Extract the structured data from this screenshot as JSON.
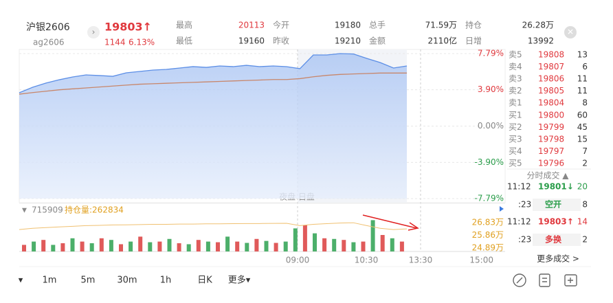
{
  "header": {
    "name": "沪银2606",
    "code": "ag2606",
    "price": "19803↑",
    "change": "1144",
    "change_pct": "6.13%",
    "stats": [
      [
        {
          "label": "最高",
          "value": "20113"
        },
        {
          "label": "今开",
          "value": "19180"
        },
        {
          "label": "总手",
          "value": "71.59万"
        },
        {
          "label": "持仓",
          "value": "26.28万"
        }
      ],
      [
        {
          "label": "最低",
          "value": "19160"
        },
        {
          "label": "昨收",
          "value": "19210"
        },
        {
          "label": "金额",
          "value": "2110亿"
        },
        {
          "label": "日增",
          "value": "13992"
        }
      ]
    ]
  },
  "chart_data": [
    {
      "type": "line",
      "ylim": [
        -7.79,
        7.79
      ],
      "yticks": [
        {
          "value": 7.79,
          "label": "7.79%"
        },
        {
          "value": 3.9,
          "label": "3.90%"
        },
        {
          "value": 0,
          "label": "0.00%"
        },
        {
          "value": -3.9,
          "label": "-3.90%"
        },
        {
          "value": -7.79,
          "label": "-7.79%"
        }
      ],
      "xticks": [
        "09:00",
        "10:30",
        "13:30",
        "15:00"
      ],
      "session_label": "夜盘 日盘",
      "series": [
        {
          "color": "#5b8ee6",
          "values": [
            3.58,
            4.17,
            4.62,
            4.98,
            5.28,
            5.5,
            5.43,
            5.35,
            5.72,
            5.87,
            6.02,
            6.09,
            6.24,
            6.39,
            6.31,
            6.46,
            6.39,
            6.53,
            6.39,
            6.46,
            6.39,
            6.17,
            7.64,
            7.64,
            7.79,
            7.75,
            7.27,
            6.83,
            6.24,
            6.46
          ]
        },
        {
          "color": "#c8866a",
          "values": [
            3.43,
            3.6,
            3.75,
            3.9,
            4.0,
            4.1,
            4.2,
            4.3,
            4.4,
            4.5,
            4.55,
            4.6,
            4.65,
            4.7,
            4.75,
            4.8,
            4.85,
            4.9,
            4.95,
            5.0,
            5.0,
            5.1,
            5.3,
            5.45,
            5.55,
            5.6,
            5.65,
            5.7,
            5.7,
            5.7
          ]
        }
      ]
    },
    {
      "type": "bar",
      "total": "715909",
      "oi_label": "持仓量:262834",
      "ylim": [
        0,
        100
      ],
      "oi_ylim": [
        24.89,
        26.83
      ],
      "oi_ticks": [
        {
          "value": 26.83,
          "label": "26.83万"
        },
        {
          "value": 25.86,
          "label": "25.86万"
        },
        {
          "value": 24.89,
          "label": "24.89万"
        }
      ],
      "oi_color": "#f0c070",
      "oi_values": [
        26.3,
        26.4,
        26.45,
        26.5,
        26.55,
        26.6,
        26.62,
        26.65,
        26.66,
        26.68,
        26.7,
        26.7,
        26.72,
        26.72,
        26.74,
        26.74,
        26.75,
        26.76,
        26.76,
        26.77,
        26.78,
        26.6,
        26.7,
        26.75,
        26.8,
        26.82,
        26.6,
        26.4,
        26.3,
        26.35
      ],
      "series": [
        {
          "color": "#e05a5a",
          "values": [
            20,
            null,
            35,
            null,
            25,
            null,
            30,
            null,
            40,
            null,
            22,
            null,
            45,
            null,
            30,
            null,
            25,
            null,
            35,
            null,
            28,
            null,
            30,
            null,
            38,
            null,
            26,
            null,
            null,
            80,
            null,
            40,
            null,
            35,
            null,
            30,
            null,
            50,
            null,
            30
          ]
        },
        {
          "color": "#4caf6a",
          "values": [
            null,
            30,
            null,
            20,
            null,
            40,
            null,
            25,
            null,
            35,
            null,
            30,
            null,
            28,
            null,
            38,
            null,
            22,
            null,
            30,
            null,
            45,
            null,
            26,
            null,
            32,
            null,
            30,
            70,
            null,
            55,
            null,
            38,
            null,
            28,
            null,
            95,
            null,
            40,
            null
          ]
        }
      ]
    }
  ],
  "order_book": {
    "asks": [
      {
        "label": "卖5",
        "price": "19808",
        "vol": "13"
      },
      {
        "label": "卖4",
        "price": "19807",
        "vol": "6"
      },
      {
        "label": "卖3",
        "price": "19806",
        "vol": "11"
      },
      {
        "label": "卖2",
        "price": "19805",
        "vol": "11"
      },
      {
        "label": "卖1",
        "price": "19804",
        "vol": "8"
      }
    ],
    "bids": [
      {
        "label": "买1",
        "price": "19800",
        "vol": "60"
      },
      {
        "label": "买2",
        "price": "19799",
        "vol": "45"
      },
      {
        "label": "买3",
        "price": "19798",
        "vol": "15"
      },
      {
        "label": "买4",
        "price": "19797",
        "vol": "7"
      },
      {
        "label": "买5",
        "price": "19796",
        "vol": "2"
      }
    ]
  },
  "trades": {
    "title": "分时成交 ▲",
    "rows": [
      {
        "time": "11:12",
        "price": "19801↓",
        "vol": "20"
      },
      {
        "time": ":23",
        "price": "空开",
        "vol": "8"
      },
      {
        "time": "11:12",
        "price": "19803↑",
        "vol": "14"
      },
      {
        "time": ":23",
        "price": "多换",
        "vol": "2"
      }
    ],
    "more": "更多成交 >"
  },
  "toolbar": [
    "▾",
    "1m",
    "5m",
    "30m",
    "1h",
    "日K",
    "更多▾"
  ]
}
